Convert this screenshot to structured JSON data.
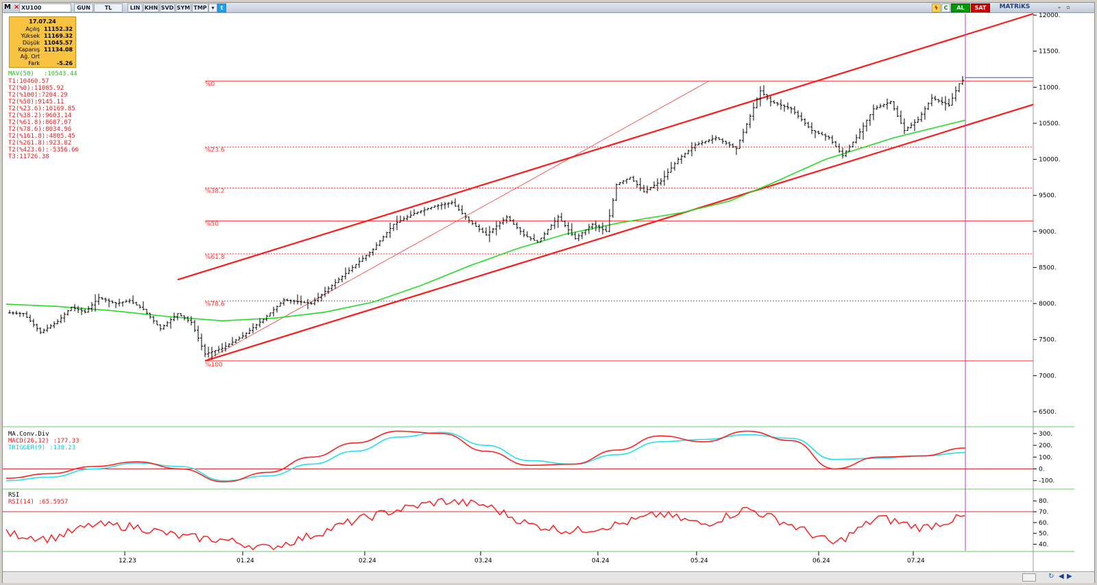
{
  "toolbar": {
    "app_icon": "M",
    "symbol": "XU100",
    "buttons": [
      "GUN",
      "TL",
      "LIN",
      "KHN",
      "SVD",
      "SYM",
      "TMP"
    ],
    "twitter_icon": "twitter-icon",
    "buy_label": "AL",
    "sell_label": "SAT",
    "brand": "MATRiKS"
  },
  "ohlc_box": {
    "date": "17.07.24",
    "rows": [
      {
        "label": "Açılış",
        "value": "11152.32"
      },
      {
        "label": "Yüksek",
        "value": "11169.32"
      },
      {
        "label": "Düşük",
        "value": "11045.57"
      },
      {
        "label": "Kapanış",
        "value": "11134.08"
      },
      {
        "label": "Ağ. Ort",
        "value": ""
      },
      {
        "label": "Fark",
        "value": "-5.26"
      }
    ]
  },
  "indicators": {
    "mav": {
      "label": "MAV(50)",
      "value": ":10543.44"
    },
    "fib_levels_text": [
      "T1:10460.57",
      "T2(%0):11085.92",
      "T2(%100):7204.29",
      "T2(%50):9145.11",
      "T2(%23.6):10169.85",
      "T2(%38.2):9603.14",
      "T2(%61.8):8687.07",
      "T2(%78.6):8034.96",
      "T2(%161.8):4805.45",
      "T2(%261.8):923.82",
      "T2(%423.6):-5356.66",
      "T3:11726.38"
    ],
    "macd_title": "MA.Conv.Div",
    "macd": {
      "label": "MACD(26,12)",
      "value": ":177.33"
    },
    "trigger": {
      "label": "TRIGGER(9)",
      "value": ":138.23"
    },
    "rsi_title": "RSI",
    "rsi": {
      "label": "RSI(14)",
      "value": ":65.5957"
    }
  },
  "chart_data": {
    "type": "ohlc",
    "symbol": "XU100",
    "x_ticks": [
      "12.23",
      "01.24",
      "02.24",
      "03.24",
      "04.24",
      "05.24",
      "06.24",
      "07.24"
    ],
    "y_ticks": [
      6500,
      7000,
      7500,
      8000,
      8500,
      9000,
      9500,
      10000,
      10500,
      11000,
      11500,
      12000
    ],
    "ylim": [
      6300,
      12020
    ],
    "fib_labels": [
      "%0",
      "%23.6",
      "%38.2",
      "%50",
      "%61.8",
      "%78.6",
      "%100"
    ],
    "fib_values": [
      11085.92,
      10169.85,
      9603.14,
      9145.11,
      8687.07,
      8034.96,
      7204.29
    ],
    "ma50_approx": [
      7990,
      7960,
      7900,
      7820,
      7760,
      7800,
      7880,
      8020,
      8250,
      8520,
      8760,
      8960,
      9120,
      9260,
      9420,
      9660,
      10000,
      10300,
      10543.44
    ],
    "macd_ticks": [
      300,
      200,
      100,
      0,
      -100
    ],
    "macd_ylim": [
      -160,
      340
    ],
    "macd_approx": [
      -80,
      -40,
      20,
      60,
      0,
      -110,
      -30,
      100,
      220,
      320,
      300,
      150,
      30,
      40,
      160,
      280,
      230,
      320,
      240,
      0,
      100,
      110,
      177.33
    ],
    "trigger_approx": [
      -100,
      -70,
      0,
      50,
      20,
      -100,
      -60,
      40,
      150,
      270,
      310,
      200,
      70,
      40,
      120,
      230,
      250,
      290,
      260,
      80,
      90,
      110,
      138.23
    ],
    "rsi_ticks": [
      80,
      70,
      60,
      50,
      40
    ],
    "rsi_ylim": [
      34,
      89
    ],
    "rsi_approx": [
      50,
      45,
      58,
      56,
      47,
      44,
      36,
      48,
      62,
      72,
      80,
      76,
      58,
      52,
      58,
      68,
      58,
      73,
      58,
      40,
      65,
      55,
      65.5957
    ]
  },
  "colors": {
    "price_bars": "#000000",
    "fib_lines": "#ff3333",
    "channel": "#ff1a1a",
    "ma50": "#22dd22",
    "macd": "#ff2020",
    "trigger": "#22e0ee",
    "rsi": "#ff2020",
    "cursor_line": "#b040c0",
    "last_price_line": "#3050d0",
    "ohlc_box_bg": "#f7c341",
    "buy_bg": "#009a00",
    "sell_bg": "#d40000"
  }
}
